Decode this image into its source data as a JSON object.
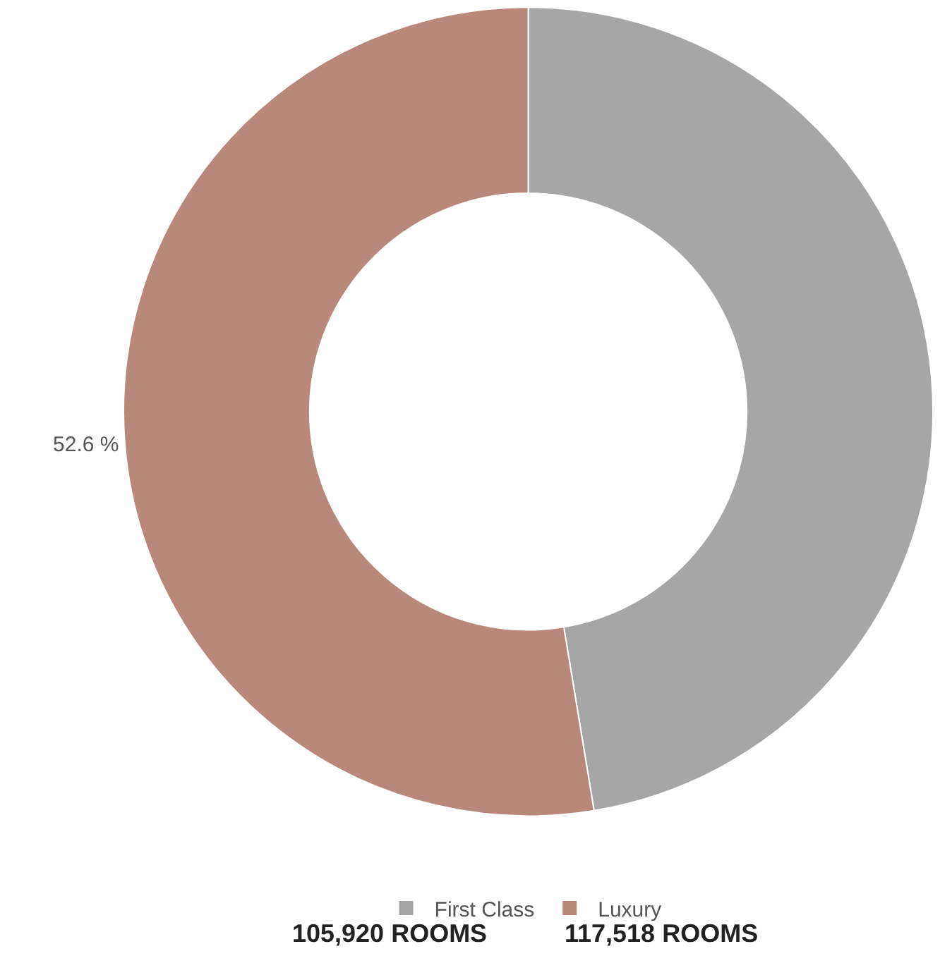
{
  "chart_data": {
    "type": "donut",
    "categories": [
      "First Class",
      "Luxury"
    ],
    "values": [
      47.4,
      52.6
    ],
    "colors": [
      "#a6a6a6",
      "#b9887c"
    ],
    "value_labels": [
      null,
      "52.6 %"
    ],
    "legend": "bottom",
    "annotations": [
      "105,920 ROOMS",
      "117,518 ROOMS"
    ]
  }
}
